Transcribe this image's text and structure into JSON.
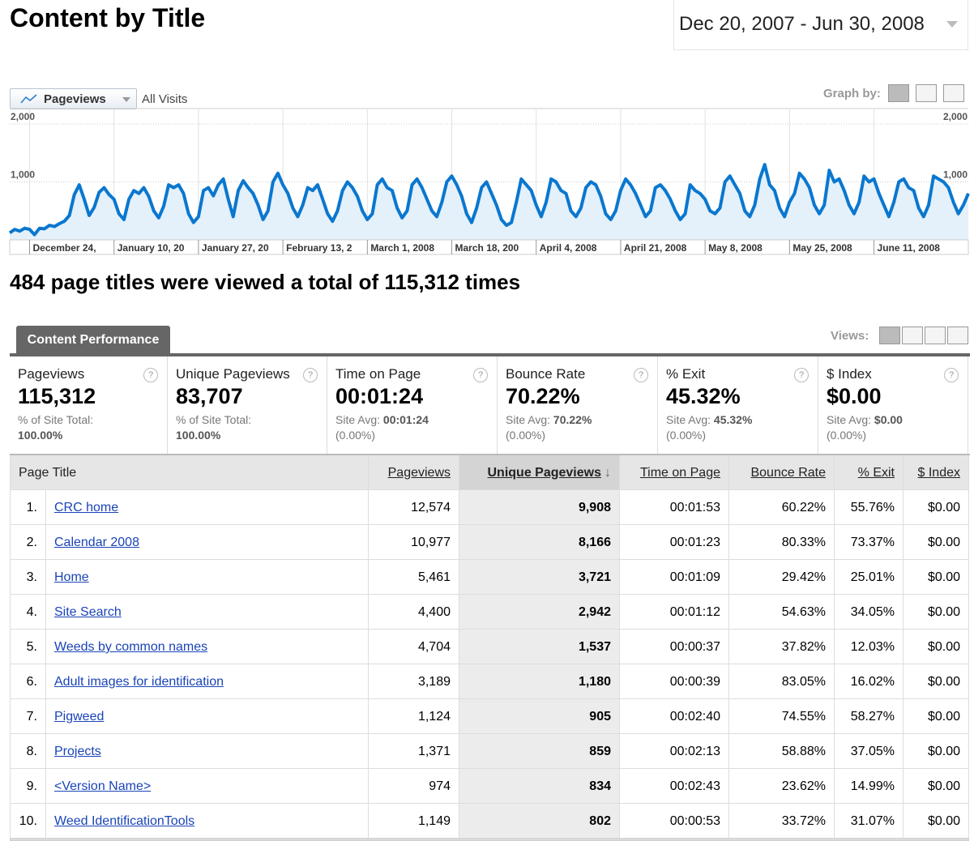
{
  "header": {
    "title": "Content by Title",
    "date_range": "Dec 20, 2007 - Jun 30, 2008"
  },
  "graph_controls": {
    "metric": "Pageviews",
    "segment": "All Visits",
    "graph_by": "Graph by:"
  },
  "chart_data": {
    "type": "line",
    "color": "#0a77cf",
    "area_color": "#e4f0fa",
    "grid": true,
    "ylim": [
      0,
      2000
    ],
    "yticks": [
      {
        "value": 1000,
        "label": "1,000"
      },
      {
        "value": 2000,
        "label": "2,000"
      }
    ],
    "xlim": [
      0,
      193
    ],
    "xticks": [
      {
        "value": 4,
        "label": "December 24,"
      },
      {
        "value": 21,
        "label": "January 10, 20"
      },
      {
        "value": 38,
        "label": "January 27, 20"
      },
      {
        "value": 55,
        "label": "February 13, 2"
      },
      {
        "value": 72,
        "label": "March 1, 2008"
      },
      {
        "value": 89,
        "label": "March 18, 200"
      },
      {
        "value": 106,
        "label": "April 4, 2008"
      },
      {
        "value": 123,
        "label": "April 21, 2008"
      },
      {
        "value": 140,
        "label": "May 8, 2008"
      },
      {
        "value": 157,
        "label": "May 25, 2008"
      },
      {
        "value": 174,
        "label": "June 11, 2008"
      }
    ],
    "values": [
      120,
      180,
      150,
      200,
      180,
      90,
      200,
      190,
      250,
      230,
      280,
      320,
      420,
      780,
      950,
      700,
      420,
      560,
      820,
      900,
      780,
      700,
      450,
      350,
      700,
      850,
      800,
      900,
      750,
      500,
      380,
      580,
      950,
      900,
      950,
      800,
      450,
      300,
      400,
      850,
      900,
      760,
      950,
      1050,
      700,
      400,
      850,
      1020,
      900,
      800,
      600,
      350,
      500,
      1000,
      1150,
      950,
      800,
      550,
      400,
      600,
      900,
      850,
      950,
      700,
      450,
      320,
      500,
      850,
      1000,
      900,
      750,
      500,
      350,
      450,
      950,
      1050,
      900,
      850,
      550,
      380,
      500,
      950,
      1050,
      900,
      700,
      500,
      400,
      650,
      1000,
      1100,
      950,
      750,
      450,
      300,
      550,
      900,
      1000,
      800,
      600,
      350,
      250,
      300,
      650,
      1050,
      950,
      850,
      600,
      400,
      650,
      1050,
      1000,
      850,
      800,
      500,
      400,
      550,
      900,
      1000,
      950,
      750,
      450,
      350,
      500,
      850,
      1050,
      950,
      800,
      600,
      400,
      500,
      900,
      950,
      850,
      700,
      500,
      350,
      450,
      950,
      850,
      800,
      700,
      500,
      450,
      550,
      1000,
      1100,
      950,
      800,
      500,
      400,
      600,
      1050,
      1300,
      950,
      850,
      550,
      400,
      650,
      800,
      1150,
      1050,
      900,
      600,
      450,
      600,
      1200,
      1000,
      1050,
      850,
      600,
      450,
      650,
      1100,
      1000,
      1050,
      800,
      600,
      400,
      650,
      1000,
      1050,
      900,
      850,
      550,
      400,
      600,
      1100,
      1050,
      1000,
      900,
      650,
      450,
      600,
      800
    ]
  },
  "summary_sentence": "484 page titles were viewed a total of 115,312 times",
  "tab": "Content Performance",
  "views_label": "Views:",
  "metrics": [
    {
      "name": "Pageviews",
      "value": "115,312",
      "sub_label": "% of Site Total:",
      "sub_value": "100.00%"
    },
    {
      "name": "Unique Pageviews",
      "value": "83,707",
      "sub_label": "% of Site Total:",
      "sub_value": "100.00%"
    },
    {
      "name": "Time on Page",
      "value": "00:01:24",
      "sub_label": "Site Avg:",
      "sub_value": "00:01:24",
      "sub_extra": "(0.00%)"
    },
    {
      "name": "Bounce Rate",
      "value": "70.22%",
      "sub_label": "Site Avg:",
      "sub_value": "70.22%",
      "sub_extra": "(0.00%)"
    },
    {
      "name": "% Exit",
      "value": "45.32%",
      "sub_label": "Site Avg:",
      "sub_value": "45.32%",
      "sub_extra": "(0.00%)"
    },
    {
      "name": "$ Index",
      "value": "$0.00",
      "sub_label": "Site Avg:",
      "sub_value": "$0.00",
      "sub_extra": "(0.00%)"
    }
  ],
  "table": {
    "columns": [
      "Page Title",
      "Pageviews",
      "Unique Pageviews",
      "Time on Page",
      "Bounce Rate",
      "% Exit",
      "$ Index"
    ],
    "rows": [
      [
        "1.",
        "CRC home",
        "12,574",
        "9,908",
        "00:01:53",
        "60.22%",
        "55.76%",
        "$0.00"
      ],
      [
        "2.",
        "Calendar 2008",
        "10,977",
        "8,166",
        "00:01:23",
        "80.33%",
        "73.37%",
        "$0.00"
      ],
      [
        "3.",
        "Home",
        "5,461",
        "3,721",
        "00:01:09",
        "29.42%",
        "25.01%",
        "$0.00"
      ],
      [
        "4.",
        "Site Search",
        "4,400",
        "2,942",
        "00:01:12",
        "54.63%",
        "34.05%",
        "$0.00"
      ],
      [
        "5.",
        "Weeds by common names",
        "4,704",
        "1,537",
        "00:00:37",
        "37.82%",
        "12.03%",
        "$0.00"
      ],
      [
        "6.",
        "Adult images for identification",
        "3,189",
        "1,180",
        "00:00:39",
        "83.05%",
        "16.02%",
        "$0.00"
      ],
      [
        "7.",
        "Pigweed",
        "1,124",
        "905",
        "00:02:40",
        "74.55%",
        "58.27%",
        "$0.00"
      ],
      [
        "8.",
        "Projects",
        "1,371",
        "859",
        "00:02:13",
        "58.88%",
        "37.05%",
        "$0.00"
      ],
      [
        "9.",
        "<Version Name>",
        "974",
        "834",
        "00:02:43",
        "23.62%",
        "14.99%",
        "$0.00"
      ],
      [
        "10.",
        "Weed IdentificationTools",
        "1,149",
        "802",
        "00:00:53",
        "33.72%",
        "31.07%",
        "$0.00"
      ]
    ]
  }
}
